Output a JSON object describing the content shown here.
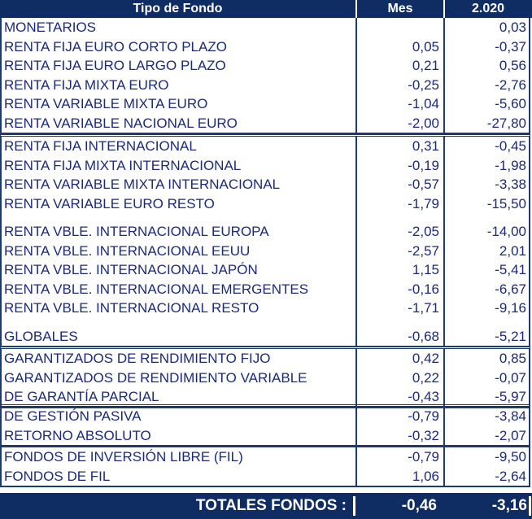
{
  "header": {
    "col_type": "Tipo de Fondo",
    "col_month": "Mes",
    "col_year": "2.020"
  },
  "groups": [
    {
      "rows": [
        {
          "name": "MONETARIOS",
          "mes": "",
          "year": "0,03"
        },
        {
          "name": "RENTA FIJA EURO CORTO PLAZO",
          "mes": "0,05",
          "year": "-0,37"
        },
        {
          "name": "RENTA FIJA EURO LARGO PLAZO",
          "mes": "0,21",
          "year": "0,56"
        },
        {
          "name": "RENTA FIJA MIXTA EURO",
          "mes": "-0,25",
          "year": "-2,76"
        },
        {
          "name": "RENTA VARIABLE MIXTA EURO",
          "mes": "-1,04",
          "year": "-5,60"
        },
        {
          "name": "RENTA VARIABLE NACIONAL EURO",
          "mes": "-2,00",
          "year": "-27,80"
        }
      ]
    },
    {
      "rows": [
        {
          "name": "RENTA FIJA INTERNACIONAL",
          "mes": "0,31",
          "year": "-0,45"
        },
        {
          "name": "RENTA FIJA MIXTA INTERNACIONAL",
          "mes": "-0,19",
          "year": "-1,98"
        },
        {
          "name": "RENTA VARIABLE MIXTA INTERNACIONAL",
          "mes": "-0,57",
          "year": "-3,38"
        },
        {
          "name": "RENTA VARIABLE EURO RESTO",
          "mes": "-1,79",
          "year": "-15,50"
        },
        {
          "name": "RENTA VBLE. INTERNACIONAL EUROPA",
          "mes": "-2,05",
          "year": "-14,00"
        },
        {
          "name": "RENTA VBLE. INTERNACIONAL EEUU",
          "mes": "-2,57",
          "year": "2,01"
        },
        {
          "name": "RENTA VBLE. INTERNACIONAL JAPÓN",
          "mes": "1,15",
          "year": "-5,41"
        },
        {
          "name": "RENTA VBLE. INTERNACIONAL EMERGENTES",
          "mes": "-0,16",
          "year": "-6,67"
        },
        {
          "name": "RENTA VBLE. INTERNACIONAL RESTO",
          "mes": "-1,71",
          "year": "-9,16"
        },
        {
          "name": "GLOBALES",
          "mes": "-0,68",
          "year": "-5,21"
        }
      ]
    },
    {
      "rows": [
        {
          "name": "GARANTIZADOS DE RENDIMIENTO FIJO",
          "mes": "0,42",
          "year": "0,85"
        },
        {
          "name": "GARANTIZADOS DE RENDIMIENTO VARIABLE",
          "mes": "0,22",
          "year": "-0,07"
        },
        {
          "name": "DE GARANTÍA PARCIAL",
          "mes": "-0,43",
          "year": "-5,97"
        }
      ]
    },
    {
      "rows": [
        {
          "name": "DE GESTIÓN PASIVA",
          "mes": "-0,79",
          "year": "-3,84"
        },
        {
          "name": "RETORNO ABSOLUTO",
          "mes": "-0,32",
          "year": "-2,07"
        }
      ]
    },
    {
      "rows": [
        {
          "name": "FONDOS DE INVERSIÓN LIBRE (FIL)",
          "mes": "-0,79",
          "year": "-9,50"
        },
        {
          "name": "FONDOS DE FIL",
          "mes": "1,06",
          "year": "-2,64"
        }
      ]
    }
  ],
  "total": {
    "label": "TOTALES FONDOS :",
    "mes": "-0,46",
    "year": "-3,16"
  }
}
